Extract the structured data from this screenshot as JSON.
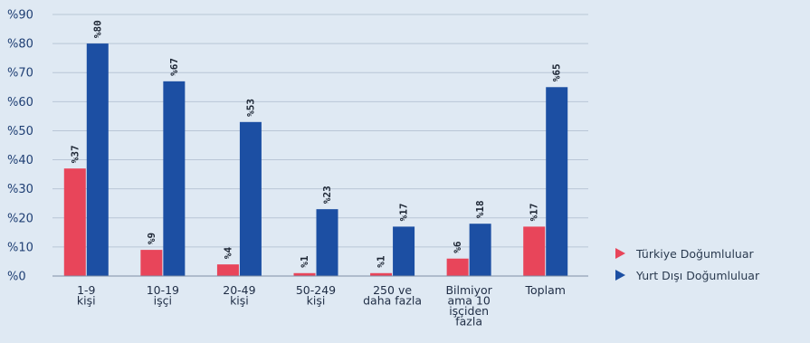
{
  "chart_data": {
    "type": "bar",
    "categories": [
      [
        "1-9",
        "kişi"
      ],
      [
        "10-19",
        "işçi"
      ],
      [
        "20-49",
        "kişi"
      ],
      [
        "50-249",
        "kişi"
      ],
      [
        "250 ve",
        "daha fazla"
      ],
      [
        "Bilmiyor",
        "ama 10",
        "işçiden",
        "fazla"
      ],
      [
        "Toplam"
      ]
    ],
    "series": [
      {
        "name": "Türkiye Doğumluluar",
        "color": "#e8455a",
        "values": [
          37,
          9,
          4,
          1,
          1,
          6,
          17
        ],
        "labels": [
          "%37",
          "%9",
          "%4",
          "%1",
          "%1",
          "%6",
          "%17"
        ]
      },
      {
        "name": "Yurt Dışı Doğumluluar",
        "color": "#1c4fa3",
        "values": [
          80,
          67,
          53,
          23,
          17,
          18,
          65
        ],
        "labels": [
          "%80",
          "%67",
          "%53",
          "%23",
          "%17",
          "%18",
          "%65"
        ]
      }
    ],
    "yticks": [
      0,
      10,
      20,
      30,
      40,
      50,
      60,
      70,
      80,
      90
    ],
    "ytick_labels": [
      "%0",
      "%10",
      "%20",
      "%30",
      "%40",
      "%50",
      "%60",
      "%70",
      "%80",
      "%90"
    ],
    "ylim": [
      0,
      90
    ],
    "grid": true,
    "legend_position": "right"
  }
}
